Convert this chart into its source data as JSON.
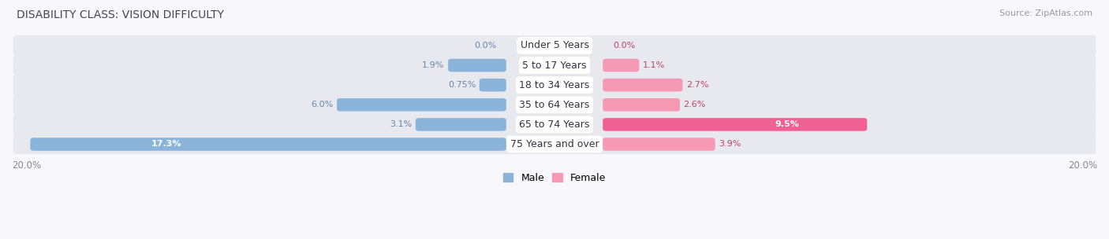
{
  "title": "DISABILITY CLASS: VISION DIFFICULTY",
  "source": "Source: ZipAtlas.com",
  "categories": [
    "Under 5 Years",
    "5 to 17 Years",
    "18 to 34 Years",
    "35 to 64 Years",
    "65 to 74 Years",
    "75 Years and over"
  ],
  "male_values": [
    0.0,
    1.9,
    0.75,
    6.0,
    3.1,
    17.3
  ],
  "female_values": [
    0.0,
    1.1,
    2.7,
    2.6,
    9.5,
    3.9
  ],
  "male_color": "#8ab4d9",
  "female_color": "#f599b4",
  "female_color_bright": "#f06090",
  "male_label_color": "#6688aa",
  "female_label_color": "#bb4466",
  "axis_max": 20.0,
  "male_legend_color": "#8ab4d9",
  "female_legend_color": "#f599b4",
  "title_color": "#444455",
  "source_color": "#999999",
  "row_bg_color": "#e8e8ef",
  "row_bg_color2": "#f0f0f5",
  "category_label_color": "#333344",
  "value_label_color_male": "#6688aa",
  "value_label_color_female": "#bb4466",
  "fig_bg_color": "#f8f8fc"
}
